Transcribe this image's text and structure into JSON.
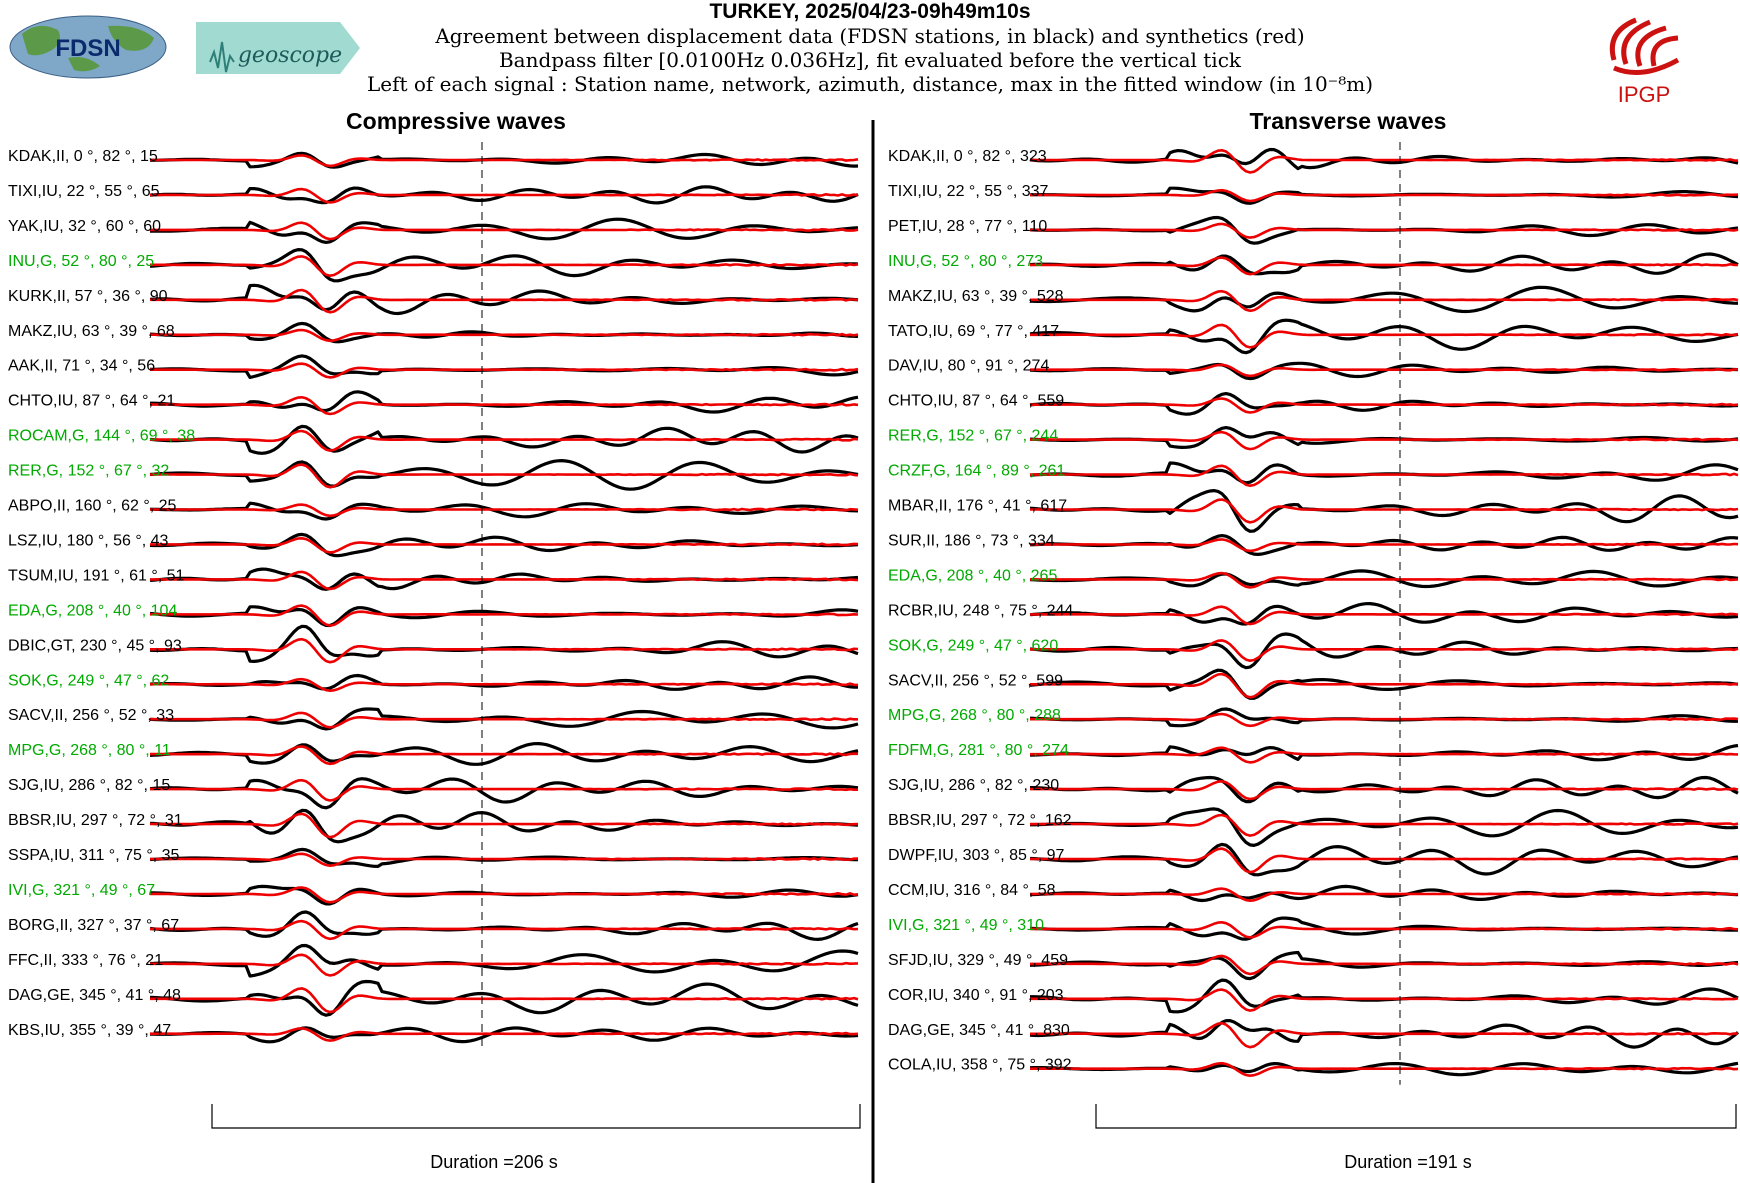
{
  "header": {
    "title": "TURKEY, 2025/04/23-09h49m10s",
    "line1": "Agreement between displacement data (FDSN stations, in black) and synthetics (red)",
    "line2": "Bandpass filter [0.0100Hz 0.036Hz], fit evaluated before the vertical tick",
    "line3": "Left of each signal : Station name, network, azimuth, distance, max in the fitted window (in 10⁻⁸m)"
  },
  "logos": {
    "fdsn": "FDSN",
    "geoscope": "geoscope",
    "ipgp": "IPGP"
  },
  "colors": {
    "data": "#000000",
    "synthetic": "#ee0000",
    "geoscope_station": "#00aa00",
    "normal_station": "#000000",
    "ipgp": "#cc1111"
  },
  "chart_data": [
    {
      "type": "line",
      "title": "Compressive waves",
      "duration_label": "Duration =206 s",
      "duration_s": 206,
      "series": [
        "data (black)",
        "synthetics (red)"
      ],
      "stations": [
        {
          "label": "KDAK,II, 0 °, 82 °, 15",
          "station": "KDAK",
          "network": "II",
          "azimuth": 0,
          "distance": 82,
          "max": 15,
          "geoscope": false
        },
        {
          "label": "TIXI,IU, 22 °, 55 °, 65",
          "station": "TIXI",
          "network": "IU",
          "azimuth": 22,
          "distance": 55,
          "max": 65,
          "geoscope": false
        },
        {
          "label": "YAK,IU, 32 °, 60 °, 60",
          "station": "YAK",
          "network": "IU",
          "azimuth": 32,
          "distance": 60,
          "max": 60,
          "geoscope": false
        },
        {
          "label": "INU,G, 52 °, 80 °, 25",
          "station": "INU",
          "network": "G",
          "azimuth": 52,
          "distance": 80,
          "max": 25,
          "geoscope": true
        },
        {
          "label": "KURK,II, 57 °, 36 °, 90",
          "station": "KURK",
          "network": "II",
          "azimuth": 57,
          "distance": 36,
          "max": 90,
          "geoscope": false
        },
        {
          "label": "MAKZ,IU, 63 °, 39 °, 68",
          "station": "MAKZ",
          "network": "IU",
          "azimuth": 63,
          "distance": 39,
          "max": 68,
          "geoscope": false
        },
        {
          "label": "AAK,II, 71 °, 34 °, 56",
          "station": "AAK",
          "network": "II",
          "azimuth": 71,
          "distance": 34,
          "max": 56,
          "geoscope": false
        },
        {
          "label": "CHTO,IU, 87 °, 64 °, 21",
          "station": "CHTO",
          "network": "IU",
          "azimuth": 87,
          "distance": 64,
          "max": 21,
          "geoscope": false
        },
        {
          "label": "ROCAM,G, 144 °, 69 °, 38",
          "station": "ROCAM",
          "network": "G",
          "azimuth": 144,
          "distance": 69,
          "max": 38,
          "geoscope": true
        },
        {
          "label": "RER,G, 152 °, 67 °, 32",
          "station": "RER",
          "network": "G",
          "azimuth": 152,
          "distance": 67,
          "max": 32,
          "geoscope": true
        },
        {
          "label": "ABPO,II, 160 °, 62 °, 25",
          "station": "ABPO",
          "network": "II",
          "azimuth": 160,
          "distance": 62,
          "max": 25,
          "geoscope": false
        },
        {
          "label": "LSZ,IU, 180 °, 56 °, 43",
          "station": "LSZ",
          "network": "IU",
          "azimuth": 180,
          "distance": 56,
          "max": 43,
          "geoscope": false
        },
        {
          "label": "TSUM,IU, 191 °, 61 °, 51",
          "station": "TSUM",
          "network": "IU",
          "azimuth": 191,
          "distance": 61,
          "max": 51,
          "geoscope": false
        },
        {
          "label": "EDA,G, 208 °, 40 °, 104",
          "station": "EDA",
          "network": "G",
          "azimuth": 208,
          "distance": 40,
          "max": 104,
          "geoscope": true
        },
        {
          "label": "DBIC,GT, 230 °, 45 °, 93",
          "station": "DBIC",
          "network": "GT",
          "azimuth": 230,
          "distance": 45,
          "max": 93,
          "geoscope": false
        },
        {
          "label": "SOK,G, 249 °, 47 °, 62",
          "station": "SOK",
          "network": "G",
          "azimuth": 249,
          "distance": 47,
          "max": 62,
          "geoscope": true
        },
        {
          "label": "SACV,II, 256 °, 52 °, 33",
          "station": "SACV",
          "network": "II",
          "azimuth": 256,
          "distance": 52,
          "max": 33,
          "geoscope": false
        },
        {
          "label": "MPG,G, 268 °, 80 °, 11",
          "station": "MPG",
          "network": "G",
          "azimuth": 268,
          "distance": 80,
          "max": 11,
          "geoscope": true
        },
        {
          "label": "SJG,IU, 286 °, 82 °, 15",
          "station": "SJG",
          "network": "IU",
          "azimuth": 286,
          "distance": 82,
          "max": 15,
          "geoscope": false
        },
        {
          "label": "BBSR,IU, 297 °, 72 °, 31",
          "station": "BBSR",
          "network": "IU",
          "azimuth": 297,
          "distance": 72,
          "max": 31,
          "geoscope": false
        },
        {
          "label": "SSPA,IU, 311 °, 75 °, 35",
          "station": "SSPA",
          "network": "IU",
          "azimuth": 311,
          "distance": 75,
          "max": 35,
          "geoscope": false
        },
        {
          "label": "IVI,G, 321 °, 49 °, 67",
          "station": "IVI",
          "network": "G",
          "azimuth": 321,
          "distance": 49,
          "max": 67,
          "geoscope": true
        },
        {
          "label": "BORG,II, 327 °, 37 °, 67",
          "station": "BORG",
          "network": "II",
          "azimuth": 327,
          "distance": 37,
          "max": 67,
          "geoscope": false
        },
        {
          "label": "FFC,II, 333 °, 76 °, 21",
          "station": "FFC",
          "network": "II",
          "azimuth": 333,
          "distance": 76,
          "max": 21,
          "geoscope": false
        },
        {
          "label": "DAG,GE, 345 °, 41 °, 48",
          "station": "DAG",
          "network": "GE",
          "azimuth": 345,
          "distance": 41,
          "max": 48,
          "geoscope": false
        },
        {
          "label": "KBS,IU, 355 °, 39 °, 47",
          "station": "KBS",
          "network": "IU",
          "azimuth": 355,
          "distance": 39,
          "max": 47,
          "geoscope": false
        }
      ]
    },
    {
      "type": "line",
      "title": "Transverse waves",
      "duration_label": "Duration =191 s",
      "duration_s": 191,
      "series": [
        "data (black)",
        "synthetics (red)"
      ],
      "stations": [
        {
          "label": "KDAK,II, 0 °, 82 °, 323",
          "station": "KDAK",
          "network": "II",
          "azimuth": 0,
          "distance": 82,
          "max": 323,
          "geoscope": false
        },
        {
          "label": "TIXI,IU, 22 °, 55 °, 337",
          "station": "TIXI",
          "network": "IU",
          "azimuth": 22,
          "distance": 55,
          "max": 337,
          "geoscope": false
        },
        {
          "label": "PET,IU, 28 °, 77 °, 110",
          "station": "PET",
          "network": "IU",
          "azimuth": 28,
          "distance": 77,
          "max": 110,
          "geoscope": false
        },
        {
          "label": "INU,G, 52 °, 80 °, 273",
          "station": "INU",
          "network": "G",
          "azimuth": 52,
          "distance": 80,
          "max": 273,
          "geoscope": true
        },
        {
          "label": "MAKZ,IU, 63 °, 39 °, 528",
          "station": "MAKZ",
          "network": "IU",
          "azimuth": 63,
          "distance": 39,
          "max": 528,
          "geoscope": false
        },
        {
          "label": "TATO,IU, 69 °, 77 °, 417",
          "station": "TATO",
          "network": "IU",
          "azimuth": 69,
          "distance": 77,
          "max": 417,
          "geoscope": false
        },
        {
          "label": "DAV,IU, 80 °, 91 °, 274",
          "station": "DAV",
          "network": "IU",
          "azimuth": 80,
          "distance": 91,
          "max": 274,
          "geoscope": false
        },
        {
          "label": "CHTO,IU, 87 °, 64 °, 559",
          "station": "CHTO",
          "network": "IU",
          "azimuth": 87,
          "distance": 64,
          "max": 559,
          "geoscope": false
        },
        {
          "label": "RER,G, 152 °, 67 °, 244",
          "station": "RER",
          "network": "G",
          "azimuth": 152,
          "distance": 67,
          "max": 244,
          "geoscope": true
        },
        {
          "label": "CRZF,G, 164 °, 89 °, 261",
          "station": "CRZF",
          "network": "G",
          "azimuth": 164,
          "distance": 89,
          "max": 261,
          "geoscope": true
        },
        {
          "label": "MBAR,II, 176 °, 41 °, 617",
          "station": "MBAR",
          "network": "II",
          "azimuth": 176,
          "distance": 41,
          "max": 617,
          "geoscope": false
        },
        {
          "label": "SUR,II, 186 °, 73 °, 334",
          "station": "SUR",
          "network": "II",
          "azimuth": 186,
          "distance": 73,
          "max": 334,
          "geoscope": false
        },
        {
          "label": "EDA,G, 208 °, 40 °, 265",
          "station": "EDA",
          "network": "G",
          "azimuth": 208,
          "distance": 40,
          "max": 265,
          "geoscope": true
        },
        {
          "label": "RCBR,IU, 248 °, 75 °, 244",
          "station": "RCBR",
          "network": "IU",
          "azimuth": 248,
          "distance": 75,
          "max": 244,
          "geoscope": false
        },
        {
          "label": "SOK,G, 249 °, 47 °, 620",
          "station": "SOK",
          "network": "G",
          "azimuth": 249,
          "distance": 47,
          "max": 620,
          "geoscope": true
        },
        {
          "label": "SACV,II, 256 °, 52 °, 599",
          "station": "SACV",
          "network": "II",
          "azimuth": 256,
          "distance": 52,
          "max": 599,
          "geoscope": false
        },
        {
          "label": "MPG,G, 268 °, 80 °, 288",
          "station": "MPG",
          "network": "G",
          "azimuth": 268,
          "distance": 80,
          "max": 288,
          "geoscope": true
        },
        {
          "label": "FDFM,G, 281 °, 80 °, 274",
          "station": "FDFM",
          "network": "G",
          "azimuth": 281,
          "distance": 80,
          "max": 274,
          "geoscope": true
        },
        {
          "label": "SJG,IU, 286 °, 82 °, 230",
          "station": "SJG",
          "network": "IU",
          "azimuth": 286,
          "distance": 82,
          "max": 230,
          "geoscope": false
        },
        {
          "label": "BBSR,IU, 297 °, 72 °, 162",
          "station": "BBSR",
          "network": "IU",
          "azimuth": 297,
          "distance": 72,
          "max": 162,
          "geoscope": false
        },
        {
          "label": "DWPF,IU, 303 °, 85 °, 97",
          "station": "DWPF",
          "network": "IU",
          "azimuth": 303,
          "distance": 85,
          "max": 97,
          "geoscope": false
        },
        {
          "label": "CCM,IU, 316 °, 84 °, 58",
          "station": "CCM",
          "network": "IU",
          "azimuth": 316,
          "distance": 84,
          "max": 58,
          "geoscope": false
        },
        {
          "label": "IVI,G, 321 °, 49 °, 310",
          "station": "IVI",
          "network": "G",
          "azimuth": 321,
          "distance": 49,
          "max": 310,
          "geoscope": true
        },
        {
          "label": "SFJD,IU, 329 °, 49 °, 459",
          "station": "SFJD",
          "network": "IU",
          "azimuth": 329,
          "distance": 49,
          "max": 459,
          "geoscope": false
        },
        {
          "label": "COR,IU, 340 °, 91 °, 203",
          "station": "COR",
          "network": "IU",
          "azimuth": 340,
          "distance": 91,
          "max": 203,
          "geoscope": false
        },
        {
          "label": "DAG,GE, 345 °, 41 °, 830",
          "station": "DAG",
          "network": "GE",
          "azimuth": 345,
          "distance": 41,
          "max": 830,
          "geoscope": false
        },
        {
          "label": "COLA,IU, 358 °, 75 °, 392",
          "station": "COLA",
          "network": "IU",
          "azimuth": 358,
          "distance": 75,
          "max": 392,
          "geoscope": false
        }
      ]
    }
  ]
}
